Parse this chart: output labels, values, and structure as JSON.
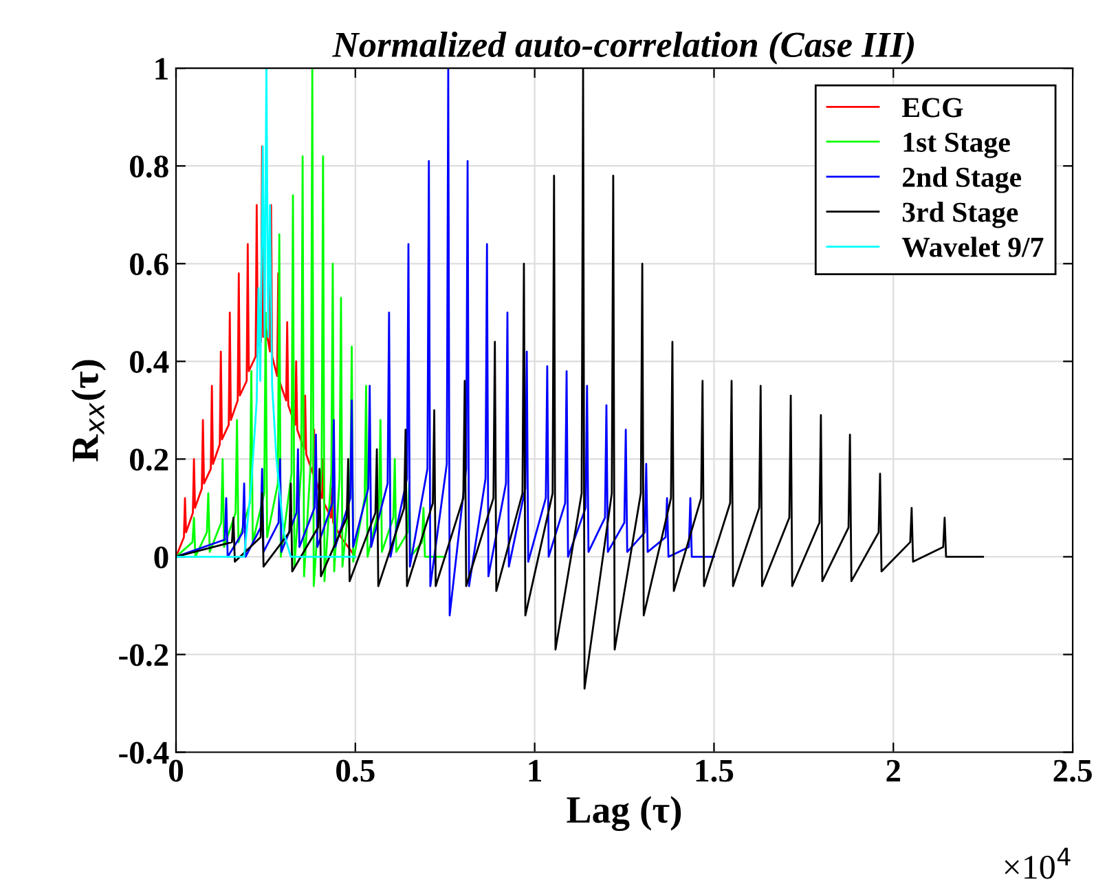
{
  "chart_data": {
    "type": "line",
    "title": "Normalized auto-correlation (Case III)",
    "xlabel": "Lag (τ)",
    "ylabel": "R$_{xx}$(τ)",
    "annotations": [
      "×10$^{4}$"
    ],
    "xlim": [
      0,
      2.5
    ],
    "xticks": [
      0,
      0.5,
      1,
      1.5,
      2,
      2.5
    ],
    "ylim": [
      -0.4,
      1
    ],
    "yticks": [
      -0.4,
      -0.2,
      0,
      0.2,
      0.4,
      0.6,
      0.8,
      1
    ],
    "grid": true,
    "legend": "top right",
    "line_style": "solid",
    "marker": "none",
    "series": [
      {
        "name": "ECG",
        "color": "#ff0000",
        "x": [
          0,
          0.022,
          0.025,
          0.028,
          0.047,
          0.05,
          0.053,
          0.072,
          0.075,
          0.078,
          0.097,
          0.1,
          0.103,
          0.122,
          0.125,
          0.128,
          0.147,
          0.15,
          0.153,
          0.172,
          0.175,
          0.178,
          0.197,
          0.2,
          0.203,
          0.222,
          0.225,
          0.228,
          0.237,
          0.24,
          0.243,
          0.25,
          0.262,
          0.265,
          0.268,
          0.282,
          0.285,
          0.288,
          0.307,
          0.31,
          0.313,
          0.332,
          0.335,
          0.338,
          0.357,
          0.36,
          0.363,
          0.382,
          0.385,
          0.388,
          0.407,
          0.41,
          0.413,
          0.432,
          0.435,
          0.438,
          0.46,
          0.5
        ],
        "values": [
          0,
          0.04,
          0.12,
          0.05,
          0.09,
          0.2,
          0.1,
          0.14,
          0.28,
          0.15,
          0.18,
          0.35,
          0.19,
          0.23,
          0.42,
          0.24,
          0.27,
          0.5,
          0.28,
          0.32,
          0.58,
          0.33,
          0.36,
          0.64,
          0.38,
          0.41,
          0.72,
          0.43,
          0.44,
          0.84,
          0.45,
          0.47,
          0.42,
          0.72,
          0.41,
          0.37,
          0.58,
          0.36,
          0.32,
          0.48,
          0.31,
          0.27,
          0.4,
          0.26,
          0.22,
          0.33,
          0.21,
          0.17,
          0.26,
          0.16,
          0.12,
          0.2,
          0.11,
          0.08,
          0.14,
          0.07,
          0.04,
          0
        ]
      },
      {
        "name": "1st Stage",
        "color": "#00ff00",
        "x": [
          0,
          0.046,
          0.05,
          0.054,
          0.086,
          0.09,
          0.094,
          0.126,
          0.13,
          0.134,
          0.166,
          0.17,
          0.174,
          0.206,
          0.21,
          0.214,
          0.246,
          0.25,
          0.254,
          0.284,
          0.288,
          0.292,
          0.322,
          0.326,
          0.33,
          0.349,
          0.353,
          0.357,
          0.376,
          0.38,
          0.384,
          0.406,
          0.41,
          0.414,
          0.433,
          0.437,
          0.441,
          0.456,
          0.46,
          0.464,
          0.486,
          0.49,
          0.494,
          0.526,
          0.53,
          0.534,
          0.566,
          0.57,
          0.574,
          0.606,
          0.61,
          0.614,
          0.646,
          0.65,
          0.654,
          0.686,
          0.69,
          0.694,
          0.75
        ],
        "values": [
          0,
          0.03,
          0.08,
          0,
          0.05,
          0.13,
          0.01,
          0.07,
          0.2,
          0.02,
          0.09,
          0.28,
          0.03,
          0.11,
          0.38,
          0.03,
          0.13,
          0.5,
          0.04,
          0.15,
          0.66,
          0,
          0.17,
          0.74,
          -0.02,
          0.18,
          0.82,
          -0.04,
          0.2,
          1.0,
          -0.06,
          0.18,
          0.82,
          -0.05,
          0.17,
          0.6,
          -0.03,
          0.16,
          0.53,
          -0.02,
          0.14,
          0.43,
          -0.01,
          0.12,
          0.35,
          0,
          0.1,
          0.28,
          0.01,
          0.08,
          0.2,
          0.01,
          0.05,
          0.15,
          0,
          0.03,
          0.1,
          0,
          0
        ]
      },
      {
        "name": "2nd Stage",
        "color": "#0000ff",
        "x": [
          0,
          0.136,
          0.14,
          0.144,
          0.186,
          0.19,
          0.194,
          0.236,
          0.24,
          0.244,
          0.286,
          0.29,
          0.294,
          0.336,
          0.34,
          0.344,
          0.386,
          0.39,
          0.394,
          0.436,
          0.44,
          0.444,
          0.486,
          0.49,
          0.494,
          0.536,
          0.54,
          0.544,
          0.59,
          0.594,
          0.598,
          0.644,
          0.648,
          0.652,
          0.701,
          0.705,
          0.709,
          0.755,
          0.759,
          0.763,
          0.809,
          0.813,
          0.817,
          0.863,
          0.867,
          0.871,
          0.92,
          0.924,
          0.928,
          0.974,
          0.978,
          0.982,
          1.031,
          1.035,
          1.039,
          1.085,
          1.089,
          1.093,
          1.142,
          1.146,
          1.15,
          1.196,
          1.2,
          1.204,
          1.25,
          1.254,
          1.258,
          1.307,
          1.311,
          1.315,
          1.365,
          1.369,
          1.373,
          1.43,
          1.434,
          1.438,
          1.5
        ],
        "values": [
          0,
          0.035,
          0.12,
          0,
          0.05,
          0.15,
          0,
          0.06,
          0.18,
          0.01,
          0.07,
          0.2,
          0.01,
          0.09,
          0.22,
          0.02,
          0.1,
          0.25,
          0.02,
          0.11,
          0.28,
          0.02,
          0.12,
          0.32,
          0.02,
          0.14,
          0.35,
          0.02,
          0.15,
          0.5,
          0,
          0.16,
          0.64,
          -0.02,
          0.18,
          0.81,
          -0.06,
          0.19,
          1.0,
          -0.12,
          0.18,
          0.81,
          -0.06,
          0.16,
          0.64,
          -0.04,
          0.15,
          0.5,
          -0.02,
          0.14,
          0.42,
          -0.01,
          0.12,
          0.39,
          0,
          0.11,
          0.38,
          0,
          0.1,
          0.35,
          0.01,
          0.08,
          0.31,
          0.01,
          0.07,
          0.26,
          0.01,
          0.05,
          0.19,
          0.01,
          0.04,
          0.12,
          0,
          0.02,
          0.12,
          0,
          0
        ]
      },
      {
        "name": "3rd Stage",
        "color": "#000000",
        "x": [
          0,
          0.156,
          0.16,
          0.164,
          0.236,
          0.24,
          0.244,
          0.316,
          0.32,
          0.324,
          0.396,
          0.4,
          0.404,
          0.476,
          0.48,
          0.484,
          0.556,
          0.56,
          0.564,
          0.636,
          0.64,
          0.644,
          0.716,
          0.72,
          0.724,
          0.801,
          0.805,
          0.809,
          0.885,
          0.889,
          0.893,
          0.966,
          0.97,
          0.974,
          1.05,
          1.054,
          1.058,
          1.131,
          1.135,
          1.139,
          1.215,
          1.219,
          1.223,
          1.296,
          1.3,
          1.304,
          1.38,
          1.384,
          1.388,
          1.464,
          1.468,
          1.472,
          1.545,
          1.549,
          1.553,
          1.626,
          1.63,
          1.634,
          1.71,
          1.714,
          1.718,
          1.794,
          1.798,
          1.802,
          1.875,
          1.879,
          1.883,
          1.959,
          1.963,
          1.967,
          2.047,
          2.051,
          2.055,
          2.139,
          2.143,
          2.147,
          2.25
        ],
        "values": [
          0,
          0.03,
          0.08,
          -0.01,
          0.04,
          0.13,
          -0.02,
          0.05,
          0.15,
          -0.03,
          0.06,
          0.18,
          -0.04,
          0.08,
          0.2,
          -0.05,
          0.09,
          0.22,
          -0.06,
          0.1,
          0.26,
          -0.06,
          0.11,
          0.3,
          -0.06,
          0.12,
          0.36,
          -0.06,
          0.12,
          0.44,
          -0.07,
          0.13,
          0.6,
          -0.12,
          0.13,
          0.78,
          -0.19,
          0.13,
          1.0,
          -0.27,
          0.13,
          0.78,
          -0.19,
          0.13,
          0.6,
          -0.12,
          0.12,
          0.44,
          -0.07,
          0.12,
          0.36,
          -0.06,
          0.11,
          0.36,
          -0.06,
          0.1,
          0.35,
          -0.06,
          0.08,
          0.33,
          -0.06,
          0.07,
          0.29,
          -0.05,
          0.06,
          0.25,
          -0.05,
          0.05,
          0.17,
          -0.03,
          0.03,
          0.1,
          -0.01,
          0.02,
          0.08,
          0,
          0
        ]
      },
      {
        "name": "Wavelet 9/7",
        "color": "#00ffff",
        "x": [
          0,
          0.19,
          0.21,
          0.225,
          0.23,
          0.235,
          0.242,
          0.247,
          0.252,
          0.257,
          0.262,
          0.268,
          0.28,
          0.3,
          0.32,
          0.5
        ],
        "values": [
          0,
          0,
          0.15,
          0.32,
          0.55,
          0.36,
          0.84,
          0.45,
          1.0,
          0.45,
          0.72,
          0.35,
          0.2,
          0.05,
          0,
          0
        ]
      }
    ]
  }
}
